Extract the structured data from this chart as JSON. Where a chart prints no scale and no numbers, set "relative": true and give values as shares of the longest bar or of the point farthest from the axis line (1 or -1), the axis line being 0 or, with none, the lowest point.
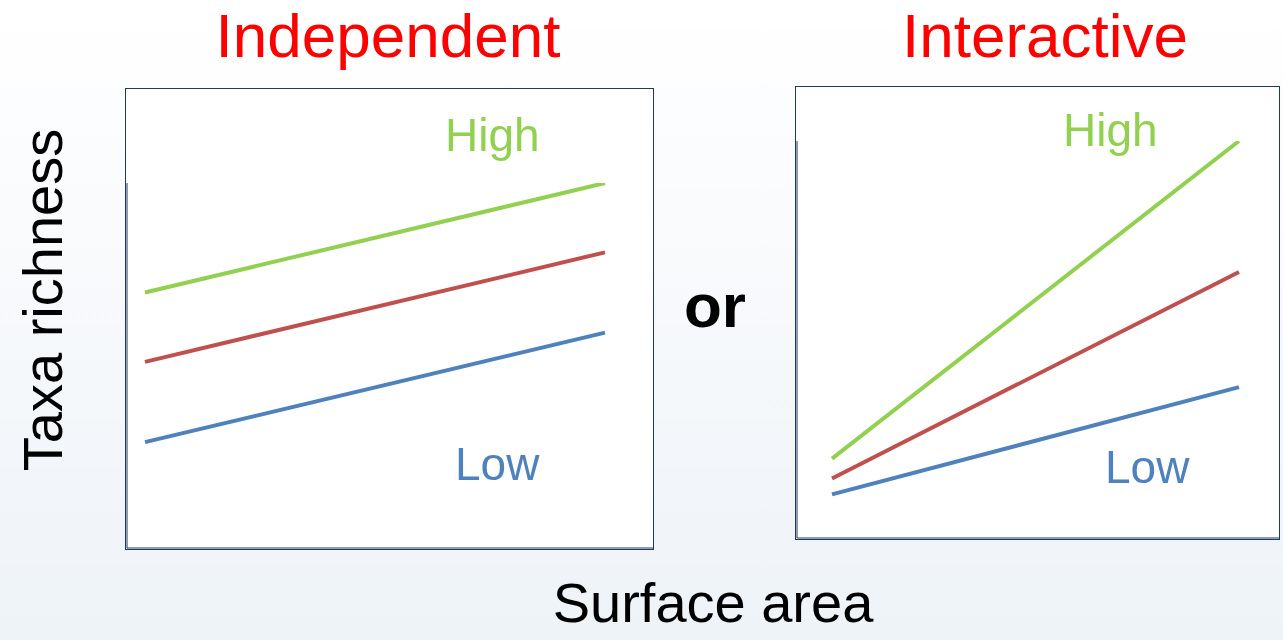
{
  "chart_data": [
    {
      "type": "line",
      "title": "Independent",
      "ylabel": "Taxa richness",
      "xlabel": "Surface area",
      "annotations": [
        "or"
      ],
      "relative": true,
      "categories": [
        null,
        null
      ],
      "series": [
        {
          "name": "High",
          "color": "#92d050",
          "values": [
            0.7,
            1.0
          ]
        },
        {
          "color": "#c0504d",
          "values": [
            0.51,
            0.81
          ]
        },
        {
          "name": "Low",
          "color": "#4f81bd",
          "values": [
            0.29,
            0.59
          ]
        }
      ]
    },
    {
      "type": "line",
      "title": "Interactive",
      "relative": true,
      "categories": [
        null,
        null
      ],
      "series": [
        {
          "name": "High",
          "color": "#92d050",
          "values": [
            0.2,
            1.0
          ]
        },
        {
          "color": "#c0504d",
          "values": [
            0.15,
            0.67
          ]
        },
        {
          "name": "Low",
          "color": "#4f81bd",
          "values": [
            0.11,
            0.38
          ]
        }
      ]
    }
  ]
}
